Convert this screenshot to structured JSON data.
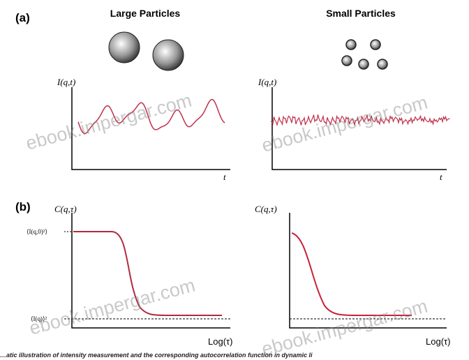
{
  "panel_a": {
    "label": "(a)",
    "left_title": "Large Particles",
    "right_title": "Small Particles",
    "left_y_label": "I(q,t)",
    "left_x_label": "t",
    "right_y_label": "I(q,t)",
    "right_x_label": "t"
  },
  "panel_b": {
    "label": "(b)",
    "left_y_label": "C(q,τ)",
    "right_y_label": "C(q,τ)",
    "top_level_label": "⟨I(q,0)²⟩",
    "baseline_label": "⟨I(q)⟩²",
    "left_x_label": "Log(τ)",
    "right_x_label": "Log(τ)"
  },
  "watermarks": [
    "ebook.impergar.com",
    "ebook.impergar.com",
    "ebook.impergar.com",
    "ebook.impergar.com"
  ],
  "caption": "…atic illustration of intensity measurement and the corresponding autocorrelation function in dynamic li"
}
